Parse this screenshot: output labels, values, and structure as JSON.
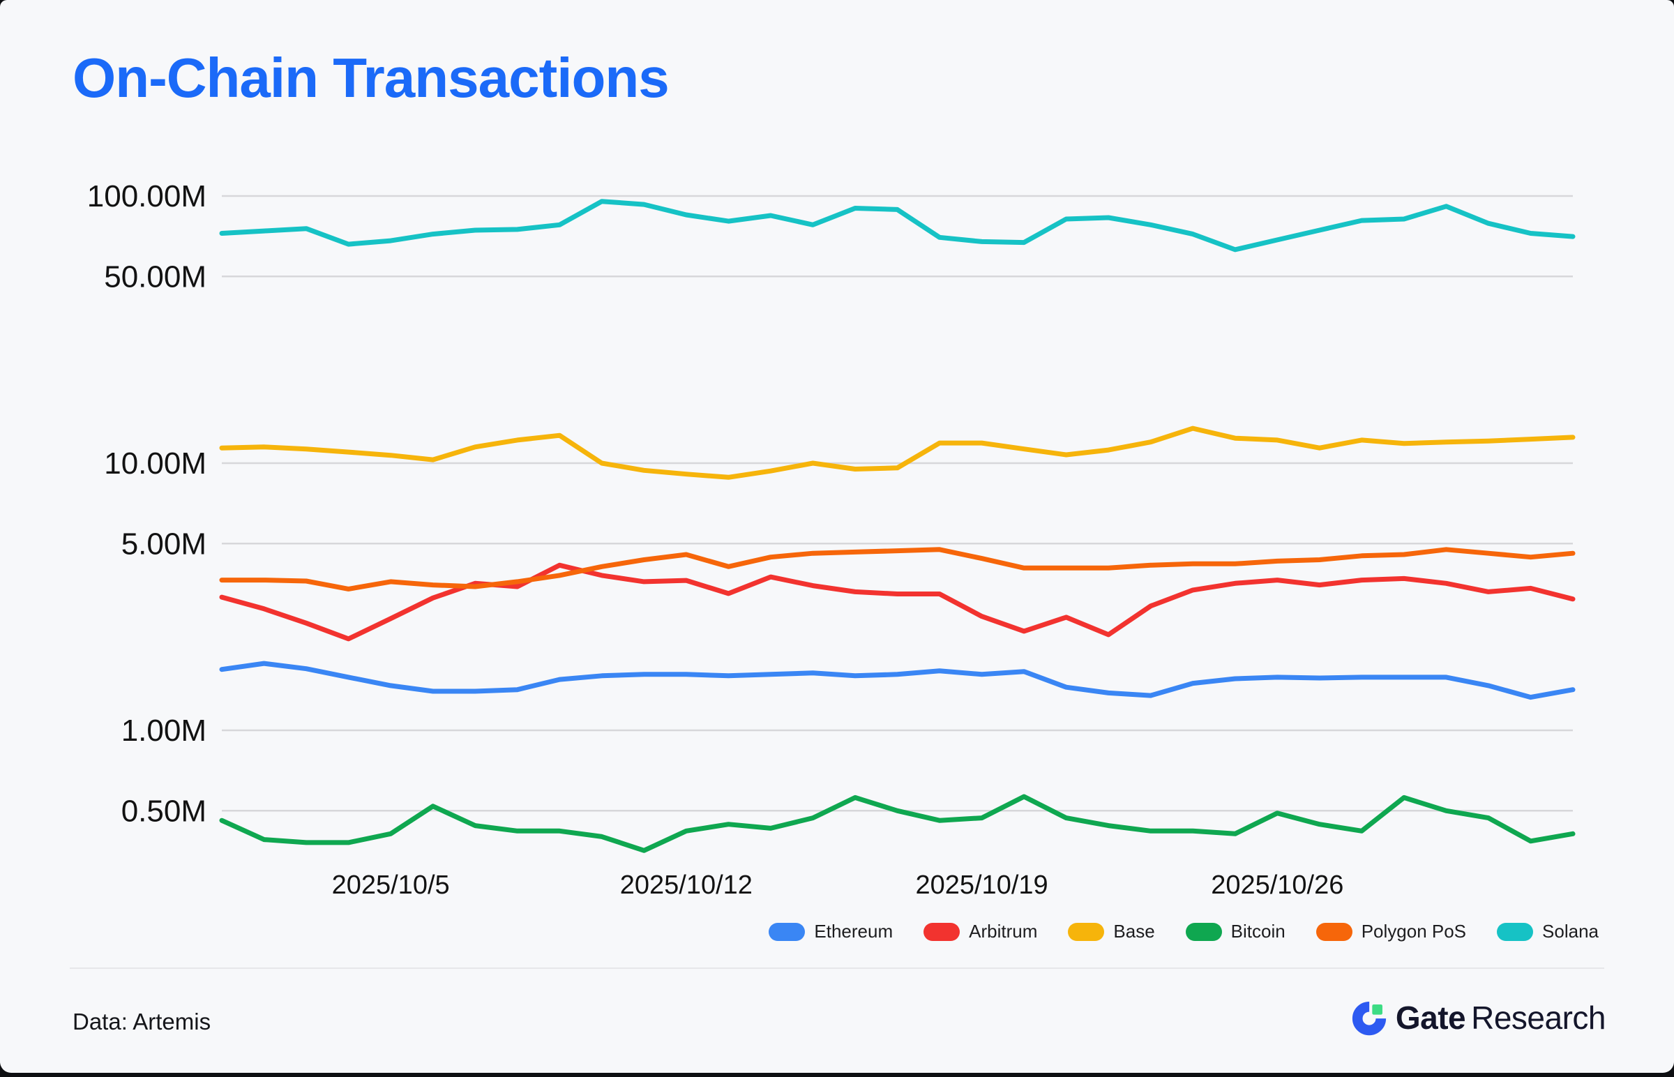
{
  "title": "On-Chain Transactions",
  "footer": {
    "source_label": "Data: Artemis",
    "brand_bold": "Gate",
    "brand_regular": "Research"
  },
  "colors": {
    "background": "#f7f8fa",
    "title": "#1b6af8",
    "gridline": "#d7d7da",
    "axis_text": "#121212",
    "brand_blue": "#2d5af1",
    "brand_green": "#3ddc84"
  },
  "chart_data": {
    "type": "line",
    "y_scale": "log",
    "unit": "millions of transactions",
    "grid": "horizontal-only",
    "legend_position": "bottom-right",
    "y_ticks": [
      "100.00M",
      "50.00M",
      "10.00M",
      "5.00M",
      "1.00M",
      "0.50M"
    ],
    "y_tick_values": [
      100,
      50,
      10,
      5,
      1,
      0.5
    ],
    "x_tick_labels": [
      "2025/10/5",
      "2025/10/12",
      "2025/10/19",
      "2025/10/26"
    ],
    "x_tick_indices": [
      4,
      11,
      18,
      25
    ],
    "x_dates": [
      "2025/10/1",
      "2025/10/2",
      "2025/10/3",
      "2025/10/4",
      "2025/10/5",
      "2025/10/6",
      "2025/10/7",
      "2025/10/8",
      "2025/10/9",
      "2025/10/10",
      "2025/10/11",
      "2025/10/12",
      "2025/10/13",
      "2025/10/14",
      "2025/10/15",
      "2025/10/16",
      "2025/10/17",
      "2025/10/18",
      "2025/10/19",
      "2025/10/20",
      "2025/10/21",
      "2025/10/22",
      "2025/10/23",
      "2025/10/24",
      "2025/10/25",
      "2025/10/26",
      "2025/10/27",
      "2025/10/28",
      "2025/10/29",
      "2025/10/30",
      "2025/10/31",
      "2025/11/1",
      "2025/11/2"
    ],
    "series": [
      {
        "name": "Ethereum",
        "color": "#3a86f4",
        "values": [
          1.69,
          1.78,
          1.7,
          1.58,
          1.47,
          1.4,
          1.4,
          1.42,
          1.55,
          1.6,
          1.62,
          1.62,
          1.6,
          1.62,
          1.64,
          1.6,
          1.62,
          1.67,
          1.62,
          1.66,
          1.45,
          1.38,
          1.35,
          1.5,
          1.56,
          1.58,
          1.57,
          1.58,
          1.58,
          1.58,
          1.47,
          1.33,
          1.42
        ]
      },
      {
        "name": "Arbitrum",
        "color": "#f2332f",
        "values": [
          3.15,
          2.85,
          2.52,
          2.2,
          2.62,
          3.13,
          3.55,
          3.45,
          4.15,
          3.8,
          3.6,
          3.64,
          3.25,
          3.75,
          3.48,
          3.3,
          3.24,
          3.24,
          2.67,
          2.35,
          2.65,
          2.28,
          2.92,
          3.35,
          3.55,
          3.65,
          3.5,
          3.65,
          3.7,
          3.55,
          3.3,
          3.4,
          3.1
        ]
      },
      {
        "name": "Base",
        "color": "#f6b40b",
        "values": [
          11.4,
          11.5,
          11.3,
          11.0,
          10.7,
          10.3,
          11.5,
          12.2,
          12.7,
          10.0,
          9.4,
          9.1,
          8.85,
          9.35,
          10.0,
          9.5,
          9.6,
          11.9,
          11.9,
          11.3,
          10.75,
          11.2,
          12.0,
          13.5,
          12.4,
          12.2,
          11.4,
          12.2,
          11.85,
          12.0,
          12.1,
          12.3,
          12.5
        ]
      },
      {
        "name": "Bitcoin",
        "color": "#0fa750",
        "values": [
          0.46,
          0.39,
          0.38,
          0.38,
          0.41,
          0.52,
          0.44,
          0.42,
          0.42,
          0.4,
          0.355,
          0.42,
          0.445,
          0.43,
          0.47,
          0.56,
          0.5,
          0.46,
          0.47,
          0.565,
          0.47,
          0.44,
          0.42,
          0.42,
          0.41,
          0.49,
          0.445,
          0.42,
          0.56,
          0.5,
          0.47,
          0.385,
          0.41
        ]
      },
      {
        "name": "Polygon PoS",
        "color": "#f6660a",
        "values": [
          3.65,
          3.65,
          3.62,
          3.38,
          3.6,
          3.5,
          3.45,
          3.6,
          3.8,
          4.1,
          4.35,
          4.55,
          4.1,
          4.45,
          4.6,
          4.65,
          4.7,
          4.75,
          4.4,
          4.05,
          4.05,
          4.05,
          4.15,
          4.2,
          4.2,
          4.3,
          4.35,
          4.5,
          4.55,
          4.75,
          4.6,
          4.45,
          4.6
        ]
      },
      {
        "name": "Solana",
        "color": "#16c2c5",
        "values": [
          72.5,
          74,
          75.5,
          66,
          68,
          72,
          74.5,
          75,
          78,
          95.5,
          93,
          85,
          80.5,
          84.5,
          78,
          90,
          89,
          70,
          67.5,
          67,
          82,
          83,
          78,
          72,
          63,
          68.5,
          74.5,
          81,
          82,
          91.5,
          79,
          72.5,
          70.5
        ]
      }
    ]
  }
}
